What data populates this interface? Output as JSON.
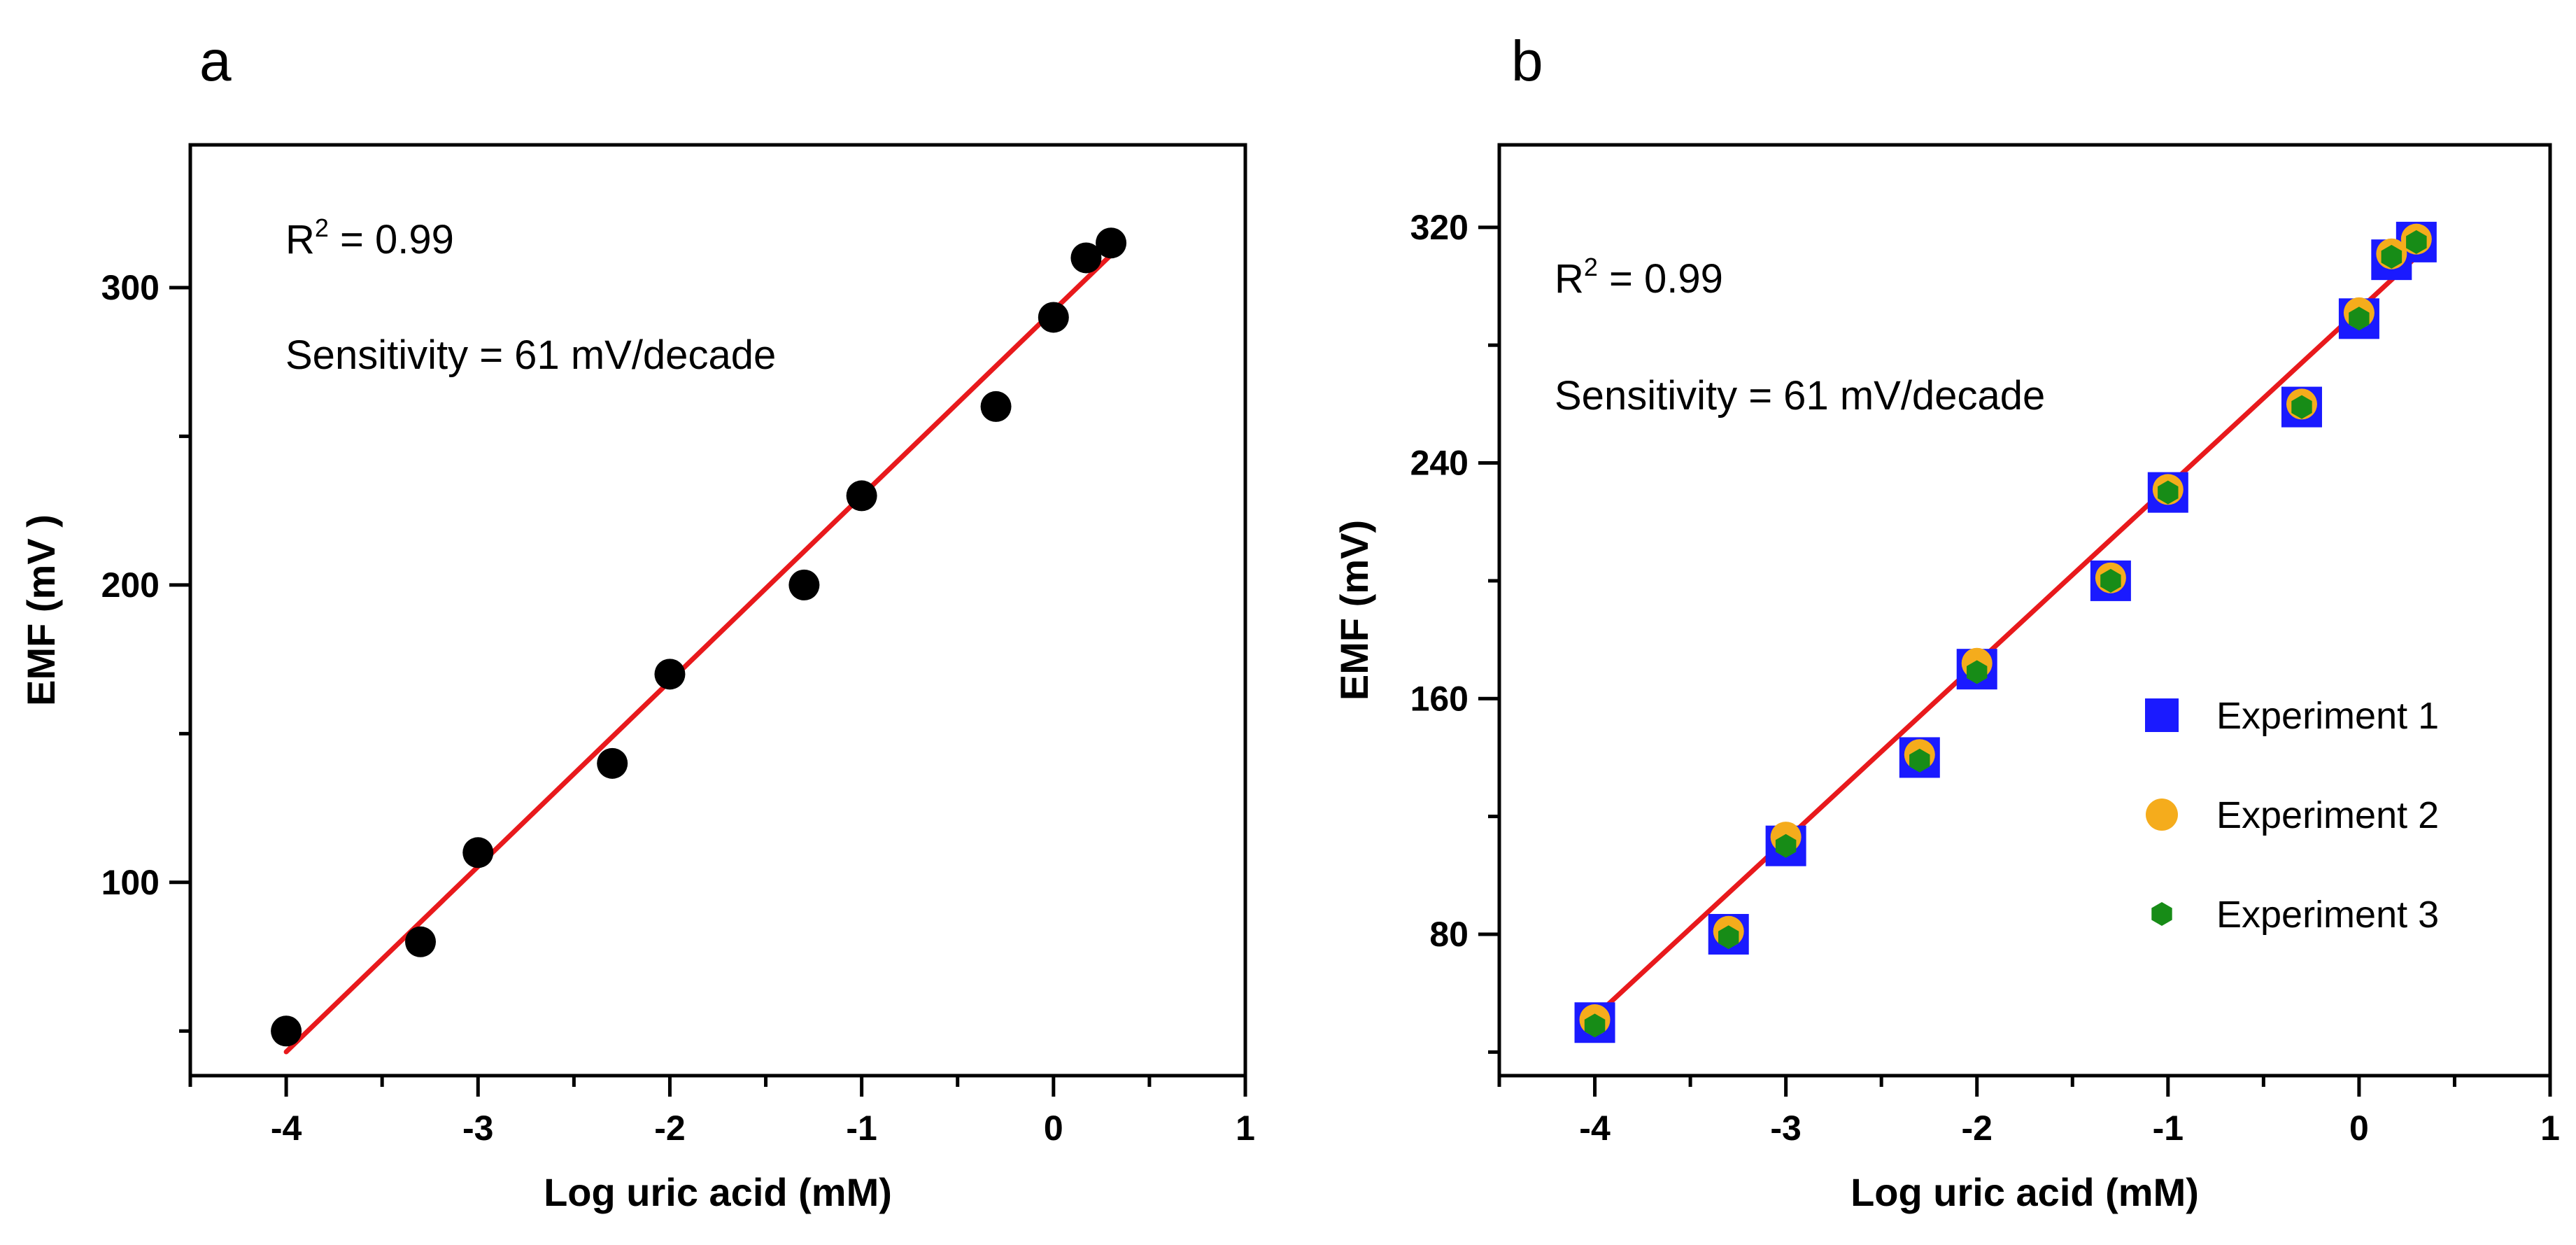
{
  "panels": [
    {
      "letter": "a",
      "annotation_r2_prefix": "R",
      "annotation_r2_sup": "2",
      "annotation_r2_value": " = 0.99",
      "annotation_sensitivity": "Sensitivity  = 61 mV/decade"
    },
    {
      "letter": "b",
      "annotation_r2_prefix": "R",
      "annotation_r2_sup": "2",
      "annotation_r2_value": " = 0.99",
      "annotation_sensitivity": "Sensitivity  = 61 mV/decade"
    }
  ],
  "chart_data": [
    {
      "type": "scatter",
      "title": "",
      "xlabel": "Log uric acid (mM)",
      "ylabel": "EMF (mV )",
      "xlim": [
        -4.5,
        1
      ],
      "ylim": [
        35,
        348
      ],
      "xticks": [
        -4,
        -3,
        -2,
        -1,
        0,
        1
      ],
      "yticks": [
        100,
        200,
        300
      ],
      "grid": false,
      "legend": null,
      "series": [
        {
          "marker": "circle",
          "color": "#000000",
          "x": [
            -4,
            -3.3,
            -3,
            -2.3,
            -2,
            -1.3,
            -1,
            -0.3,
            0,
            0.17,
            0.3
          ],
          "y": [
            50,
            80,
            110,
            140,
            170,
            200,
            230,
            260,
            290,
            310,
            315
          ]
        }
      ],
      "fit_line": {
        "color": "#e8191c",
        "x": [
          -4,
          0.3
        ],
        "y": [
          43,
          311
        ]
      },
      "annotations": [
        "R2 = 0.99",
        "Sensitivity  = 61 mV/decade"
      ]
    },
    {
      "type": "scatter",
      "title": "",
      "xlabel": "Log uric acid (mM)",
      "ylabel": "EMF (mV)",
      "xlim": [
        -4.5,
        1
      ],
      "ylim": [
        32,
        348
      ],
      "xticks": [
        -4,
        -3,
        -2,
        -1,
        0,
        1
      ],
      "yticks": [
        80,
        160,
        240,
        320
      ],
      "grid": false,
      "legend": "right",
      "series": [
        {
          "name": "Experiment  1",
          "marker": "square",
          "color": "#1a1aff",
          "x": [
            -4,
            -3.3,
            -3,
            -2.3,
            -2,
            -1.3,
            -1,
            -0.3,
            0,
            0.17,
            0.3
          ],
          "y": [
            50,
            80,
            110,
            140,
            170,
            200,
            230,
            259,
            289,
            309,
            315
          ]
        },
        {
          "name": "Experiment  2",
          "marker": "circle",
          "color": "#f5ac1c",
          "x": [
            -4,
            -3.3,
            -3,
            -2.3,
            -2,
            -1.3,
            -1,
            -0.3,
            0,
            0.17,
            0.3
          ],
          "y": [
            51,
            81,
            113,
            141,
            172,
            201,
            231,
            260,
            291,
            311,
            316
          ]
        },
        {
          "name": "Experiment  3",
          "marker": "hexagon",
          "color": "#178c17",
          "x": [
            -4,
            -3.3,
            -3,
            -2.3,
            -2,
            -1.3,
            -1,
            -0.3,
            0,
            0.17,
            0.3
          ],
          "y": [
            49,
            79,
            110,
            139,
            169,
            200,
            230,
            259,
            289,
            310,
            315
          ]
        }
      ],
      "fit_line": {
        "color": "#e8191c",
        "x": [
          -4,
          0.3
        ],
        "y": [
          52,
          310
        ]
      },
      "annotations": [
        "R2 = 0.99",
        "Sensitivity  = 61 mV/decade"
      ]
    }
  ]
}
